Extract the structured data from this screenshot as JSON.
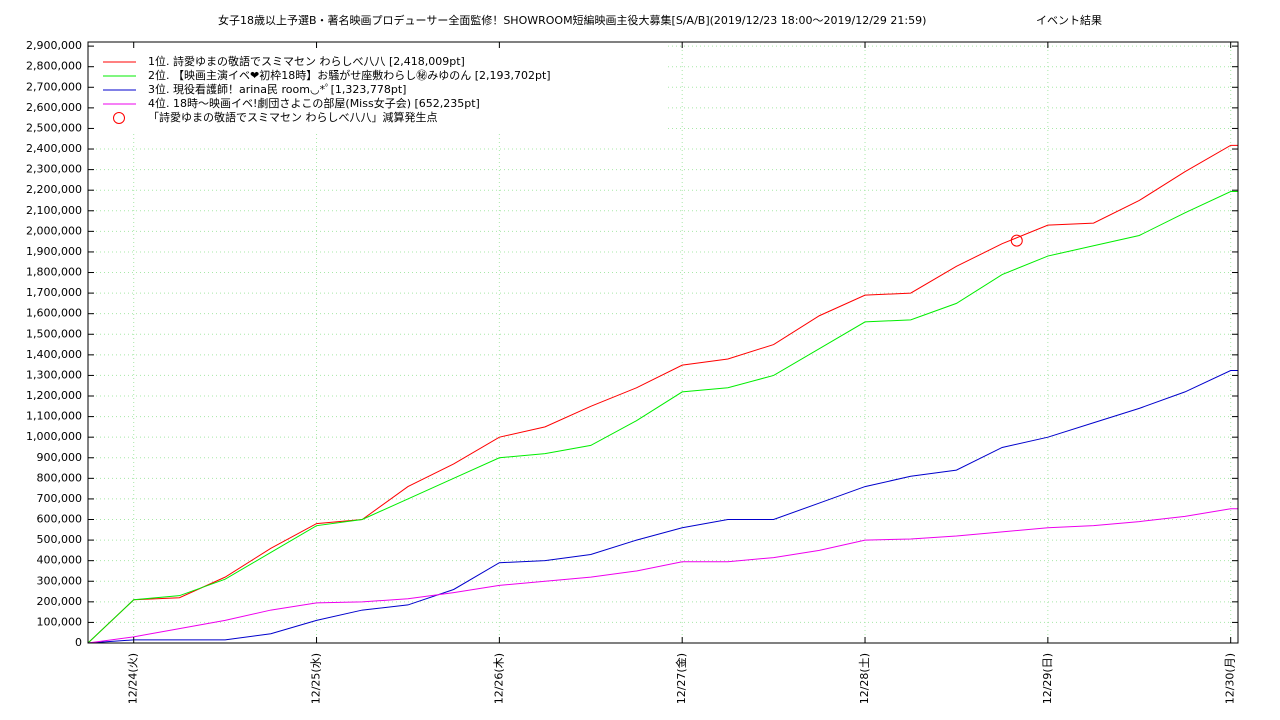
{
  "chart_data": {
    "type": "line",
    "title": "女子18歳以上予選B・著名映画プロデューサー全面監修！SHOWROOM短編映画主役大募集[S/A/B](2019/12/23 18:00～2019/12/29 21:59)",
    "subtitle": "イベント結果",
    "x": [
      23.75,
      24.0,
      24.25,
      24.5,
      24.75,
      25.0,
      25.25,
      25.5,
      25.75,
      26.0,
      26.25,
      26.5,
      26.75,
      27.0,
      27.25,
      27.5,
      27.75,
      28.0,
      28.25,
      28.5,
      28.75,
      29.0,
      29.25,
      29.5,
      29.75,
      30.0,
      30.04
    ],
    "series": [
      {
        "name": "1位. 詩愛ゆまの敬語でスミマセン わらしべ八八 [2,418,009pt]",
        "color": "#ff0000",
        "values": [
          0,
          210000,
          220000,
          320000,
          460000,
          580000,
          600000,
          760000,
          870000,
          1000000,
          1050000,
          1150000,
          1240000,
          1350000,
          1380000,
          1450000,
          1590000,
          1690000,
          1700000,
          1830000,
          1940000,
          2030000,
          2040000,
          2150000,
          2290000,
          2418009,
          2418009
        ]
      },
      {
        "name": "2位. 【映画主演イベ❤初枠18時】お騒がせ座敷わらし㊙みゆのん [2,193,702pt]",
        "color": "#00ee00",
        "values": [
          0,
          210000,
          230000,
          310000,
          440000,
          570000,
          600000,
          700000,
          800000,
          900000,
          920000,
          960000,
          1080000,
          1220000,
          1240000,
          1300000,
          1430000,
          1560000,
          1570000,
          1650000,
          1790000,
          1880000,
          1930000,
          1980000,
          2090000,
          2193702,
          2193702
        ]
      },
      {
        "name": "3位. 現役看護師！arina民 room◡*ﾟ[1,323,778pt]",
        "color": "#0000cc",
        "values": [
          0,
          15000,
          15000,
          15000,
          45000,
          110000,
          160000,
          185000,
          260000,
          390000,
          400000,
          430000,
          500000,
          560000,
          600000,
          600000,
          680000,
          760000,
          810000,
          840000,
          950000,
          1000000,
          1070000,
          1140000,
          1220000,
          1323778,
          1323778
        ]
      },
      {
        "name": "4位. 18時～映画イベ!劇団さよこの部屋(Miss女子会) [652,235pt]",
        "color": "#ee00ee",
        "values": [
          0,
          30000,
          70000,
          110000,
          160000,
          195000,
          200000,
          215000,
          245000,
          280000,
          300000,
          320000,
          350000,
          395000,
          395000,
          415000,
          450000,
          500000,
          505000,
          520000,
          540000,
          560000,
          570000,
          590000,
          615000,
          652235,
          652235
        ]
      }
    ],
    "marker": {
      "name": "「詩愛ゆまの敬語でスミマセン わらしべ八八」減算発生点",
      "color": "#ff0000",
      "x": [
        28.83
      ],
      "values": [
        1955000
      ]
    },
    "xlim": [
      23.75,
      30.04
    ],
    "xticks": [
      {
        "value": 24,
        "label": "12/24(火)"
      },
      {
        "value": 25,
        "label": "12/25(水)"
      },
      {
        "value": 26,
        "label": "12/26(木)"
      },
      {
        "value": 27,
        "label": "12/27(金)"
      },
      {
        "value": 28,
        "label": "12/28(土)"
      },
      {
        "value": 29,
        "label": "12/29(日)"
      },
      {
        "value": 30,
        "label": "12/30(月)"
      }
    ],
    "ylim": [
      0,
      2920000
    ],
    "yticks": [
      0,
      {
        "value": 100000,
        "label": "100,000"
      },
      {
        "value": 200000,
        "label": "200,000"
      },
      {
        "value": 300000,
        "label": "300,000"
      },
      {
        "value": 400000,
        "label": "400,000"
      },
      {
        "value": 500000,
        "label": "500,000"
      },
      {
        "value": 600000,
        "label": "600,000"
      },
      {
        "value": 700000,
        "label": "700,000"
      },
      {
        "value": 800000,
        "label": "800,000"
      },
      {
        "value": 900000,
        "label": "900,000"
      },
      {
        "value": 1000000,
        "label": "1,000,000"
      },
      {
        "value": 1100000,
        "label": "1,100,000"
      },
      {
        "value": 1200000,
        "label": "1,200,000"
      },
      {
        "value": 1300000,
        "label": "1,300,000"
      },
      {
        "value": 1400000,
        "label": "1,400,000"
      },
      {
        "value": 1500000,
        "label": "1,500,000"
      },
      {
        "value": 1600000,
        "label": "1,600,000"
      },
      {
        "value": 1700000,
        "label": "1,700,000"
      },
      {
        "value": 1800000,
        "label": "1,800,000"
      },
      {
        "value": 1900000,
        "label": "1,900,000"
      },
      {
        "value": 2000000,
        "label": "2,000,000"
      },
      {
        "value": 2100000,
        "label": "2,100,000"
      },
      {
        "value": 2200000,
        "label": "2,200,000"
      },
      {
        "value": 2300000,
        "label": "2,300,000"
      },
      {
        "value": 2400000,
        "label": "2,400,000"
      },
      {
        "value": 2500000,
        "label": "2,500,000"
      },
      {
        "value": 2600000,
        "label": "2,600,000"
      },
      {
        "value": 2700000,
        "label": "2,700,000"
      },
      {
        "value": 2800000,
        "label": "2,800,000"
      },
      {
        "value": 2900000,
        "label": "2,900,000"
      }
    ],
    "grid": true,
    "legend": "top-left"
  }
}
